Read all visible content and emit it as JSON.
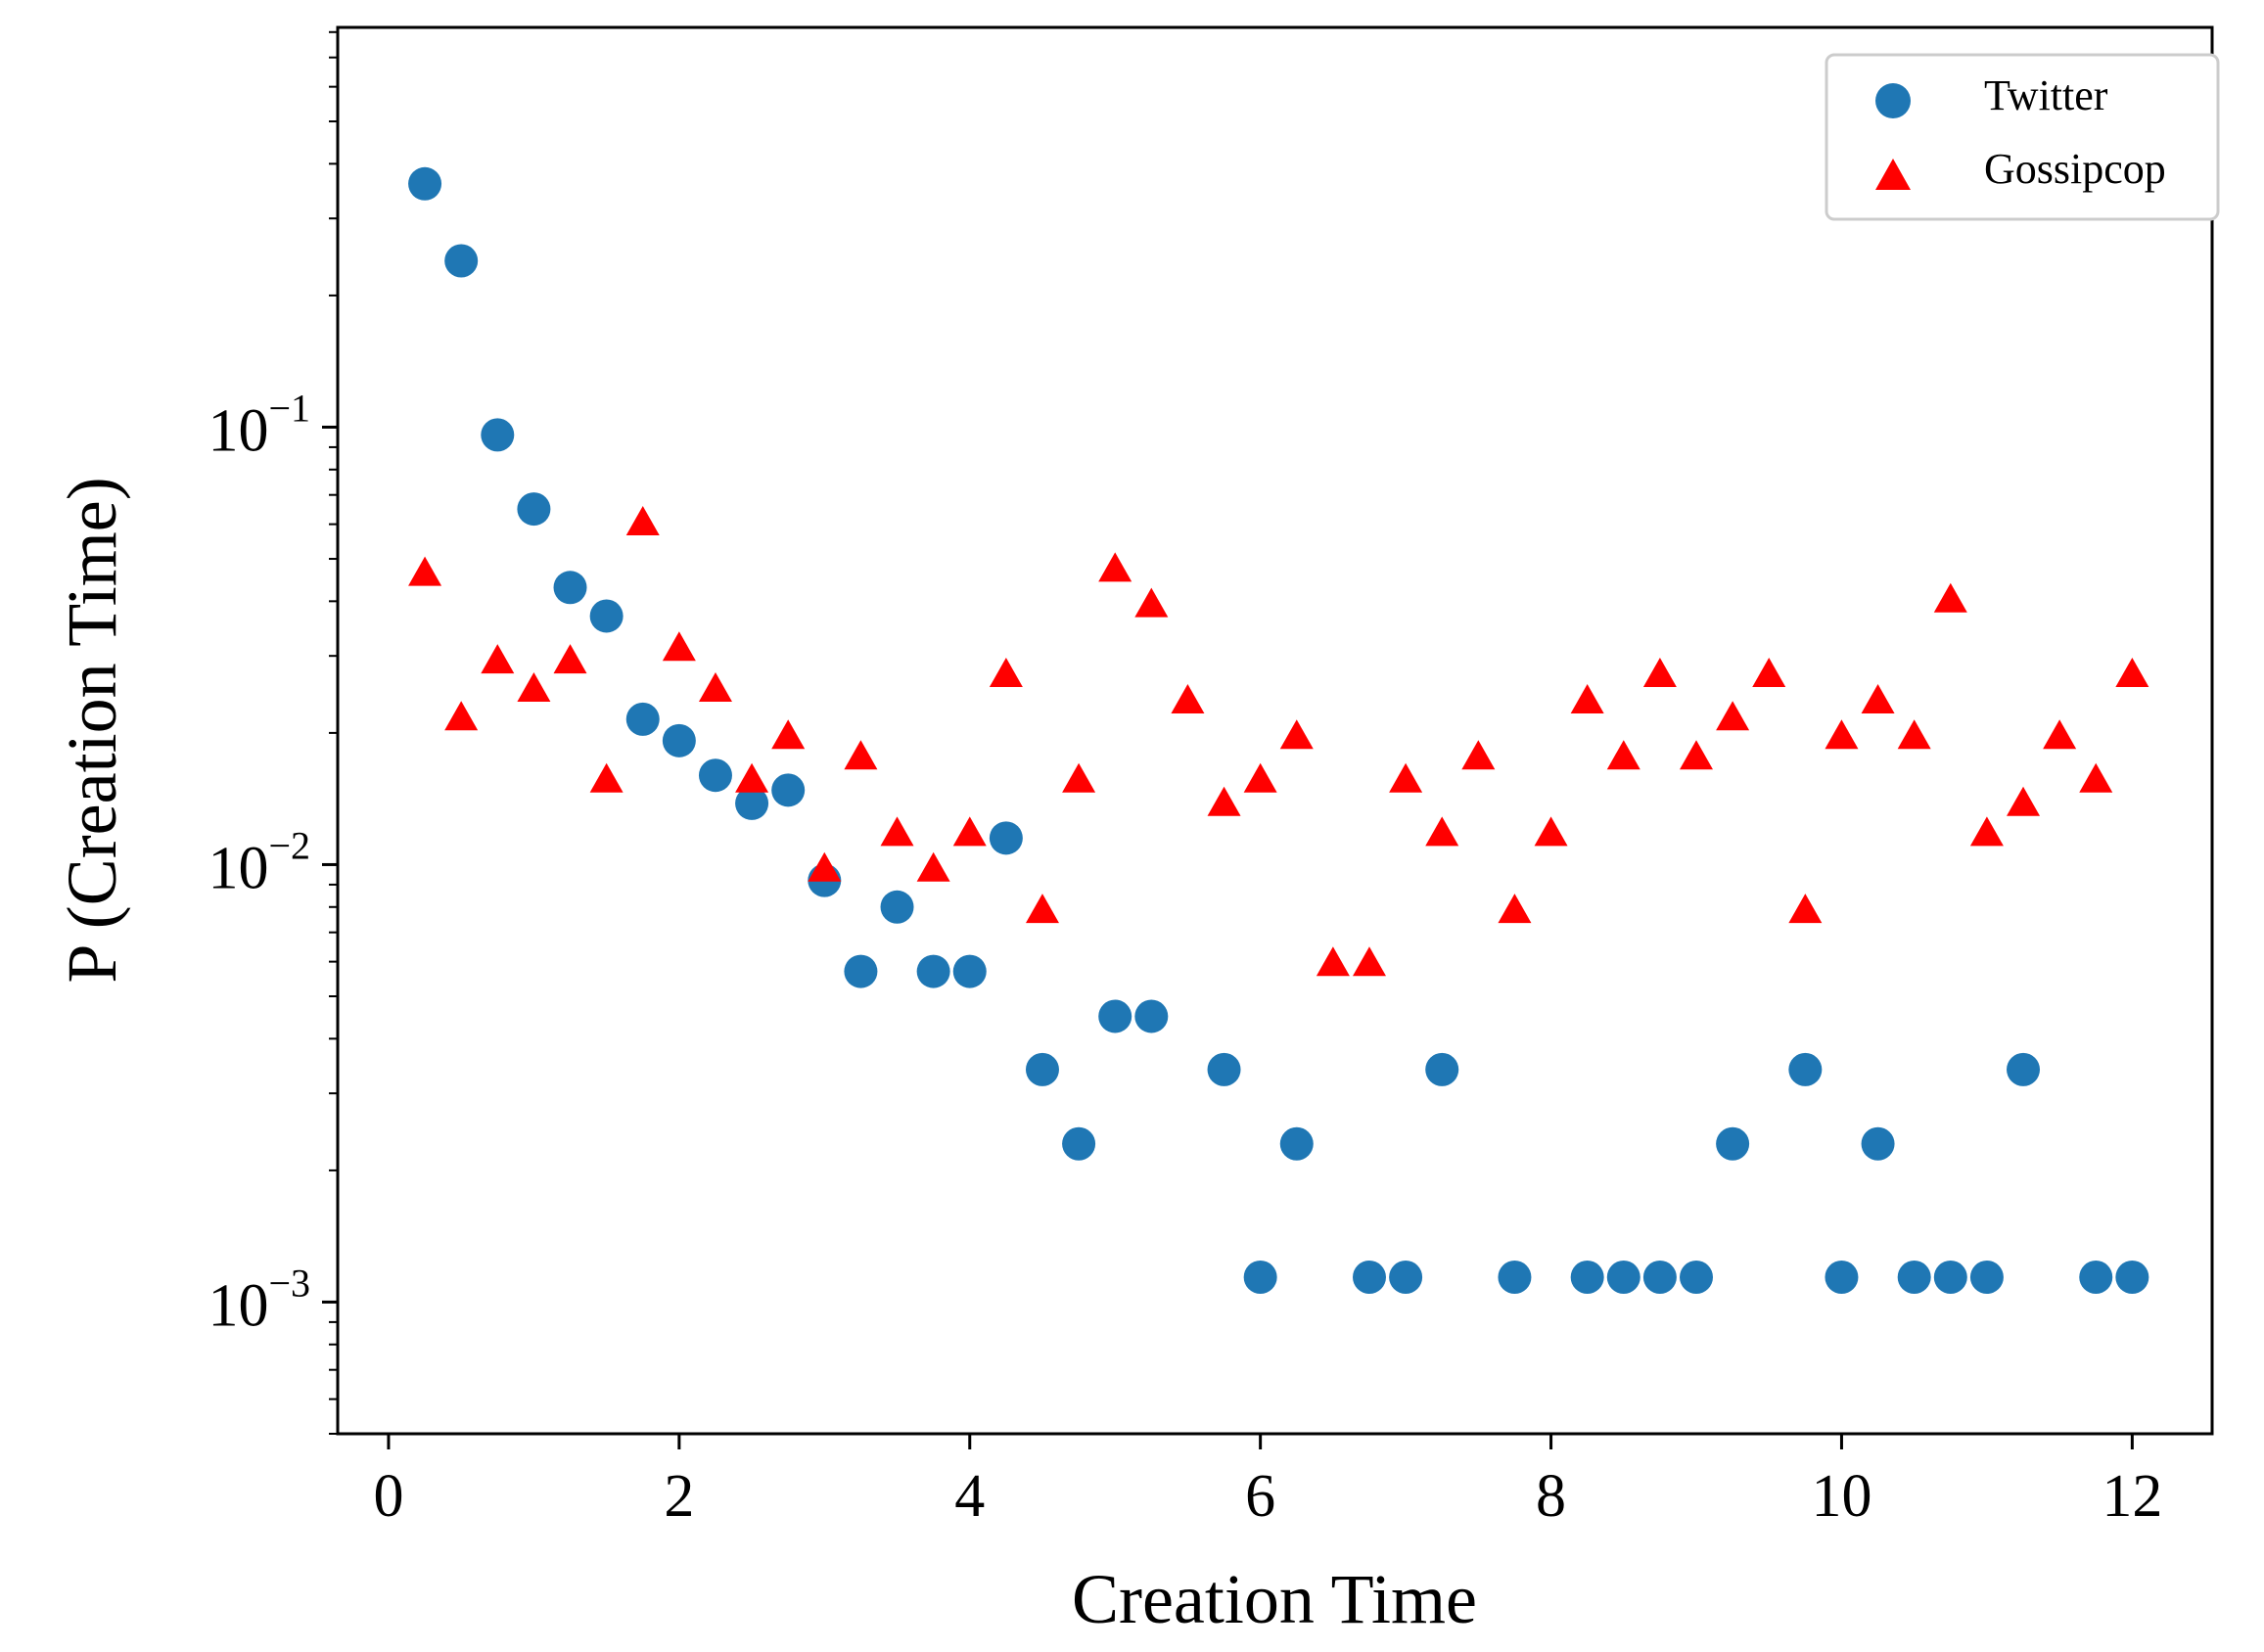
{
  "chart_data": {
    "type": "scatter",
    "title": "",
    "xlabel": "Creation Time",
    "ylabel": "P (Creation Time)",
    "xlim": [
      -0.35,
      12.55
    ],
    "ylim": [
      0.0005,
      0.82
    ],
    "yscale": "log",
    "x_ticks": [
      0,
      2,
      4,
      6,
      8,
      10,
      12
    ],
    "x_tick_labels": [
      "0",
      "2",
      "4",
      "6",
      "8",
      "10",
      "12"
    ],
    "y_ticks": [
      {
        "value": 0.1,
        "base": "10",
        "exponent": "−1"
      },
      {
        "value": 0.01,
        "base": "10",
        "exponent": "−2"
      },
      {
        "value": 0.001,
        "base": "10",
        "exponent": "−3"
      }
    ],
    "legend": {
      "location": "top-right",
      "entries": [
        "Twitter",
        "Gossipcop"
      ]
    },
    "series": [
      {
        "name": "Twitter",
        "marker": "circle",
        "color": "#1f77b4",
        "points": [
          [
            0.25,
            0.36
          ],
          [
            0.5,
            0.24
          ],
          [
            0.75,
            0.096
          ],
          [
            1.0,
            0.065
          ],
          [
            1.25,
            0.043
          ],
          [
            1.5,
            0.037
          ],
          [
            1.75,
            0.0215
          ],
          [
            2.0,
            0.0192
          ],
          [
            2.25,
            0.016
          ],
          [
            2.5,
            0.0138
          ],
          [
            2.75,
            0.0148
          ],
          [
            3.0,
            0.0092
          ],
          [
            3.25,
            0.0057
          ],
          [
            3.5,
            0.008
          ],
          [
            3.75,
            0.0057
          ],
          [
            4.0,
            0.0057
          ],
          [
            4.25,
            0.0115
          ],
          [
            4.5,
            0.0034
          ],
          [
            4.75,
            0.0023
          ],
          [
            5.0,
            0.0045
          ],
          [
            5.25,
            0.0045
          ],
          [
            5.75,
            0.0034
          ],
          [
            6.0,
            0.00114
          ],
          [
            6.25,
            0.0023
          ],
          [
            6.75,
            0.00114
          ],
          [
            7.0,
            0.00114
          ],
          [
            7.25,
            0.0034
          ],
          [
            7.75,
            0.00114
          ],
          [
            8.25,
            0.00114
          ],
          [
            8.5,
            0.00114
          ],
          [
            8.75,
            0.00114
          ],
          [
            9.0,
            0.00114
          ],
          [
            9.25,
            0.0023
          ],
          [
            9.75,
            0.0034
          ],
          [
            10.0,
            0.00114
          ],
          [
            10.25,
            0.0023
          ],
          [
            10.5,
            0.00114
          ],
          [
            10.75,
            0.00114
          ],
          [
            11.0,
            0.00114
          ],
          [
            11.25,
            0.0034
          ],
          [
            11.75,
            0.00114
          ],
          [
            12.0,
            0.00114
          ]
        ]
      },
      {
        "name": "Gossipcop",
        "marker": "triangle",
        "color": "#ff0000",
        "points": [
          [
            0.25,
            0.046
          ],
          [
            0.5,
            0.0215
          ],
          [
            0.75,
            0.029
          ],
          [
            1.0,
            0.025
          ],
          [
            1.25,
            0.029
          ],
          [
            1.5,
            0.0155
          ],
          [
            1.75,
            0.06
          ],
          [
            2.0,
            0.031
          ],
          [
            2.25,
            0.025
          ],
          [
            2.5,
            0.0155
          ],
          [
            2.75,
            0.0195
          ],
          [
            3.0,
            0.0097
          ],
          [
            3.25,
            0.0175
          ],
          [
            3.5,
            0.0117
          ],
          [
            3.75,
            0.0097
          ],
          [
            4.0,
            0.0117
          ],
          [
            4.25,
            0.027
          ],
          [
            4.5,
            0.0078
          ],
          [
            4.75,
            0.0155
          ],
          [
            5.0,
            0.047
          ],
          [
            5.25,
            0.039
          ],
          [
            5.5,
            0.0235
          ],
          [
            5.75,
            0.0137
          ],
          [
            6.0,
            0.0155
          ],
          [
            6.25,
            0.0195
          ],
          [
            6.5,
            0.0059
          ],
          [
            6.75,
            0.0059
          ],
          [
            7.0,
            0.0155
          ],
          [
            7.25,
            0.0117
          ],
          [
            7.5,
            0.0175
          ],
          [
            7.75,
            0.0078
          ],
          [
            8.0,
            0.0117
          ],
          [
            8.25,
            0.0235
          ],
          [
            8.5,
            0.0175
          ],
          [
            8.75,
            0.027
          ],
          [
            9.0,
            0.0175
          ],
          [
            9.25,
            0.0215
          ],
          [
            9.5,
            0.027
          ],
          [
            9.75,
            0.0078
          ],
          [
            10.0,
            0.0195
          ],
          [
            10.25,
            0.0235
          ],
          [
            10.5,
            0.0195
          ],
          [
            10.75,
            0.04
          ],
          [
            11.0,
            0.0117
          ],
          [
            11.25,
            0.0137
          ],
          [
            11.5,
            0.0195
          ],
          [
            11.75,
            0.0155
          ],
          [
            12.0,
            0.027
          ]
        ]
      }
    ]
  }
}
